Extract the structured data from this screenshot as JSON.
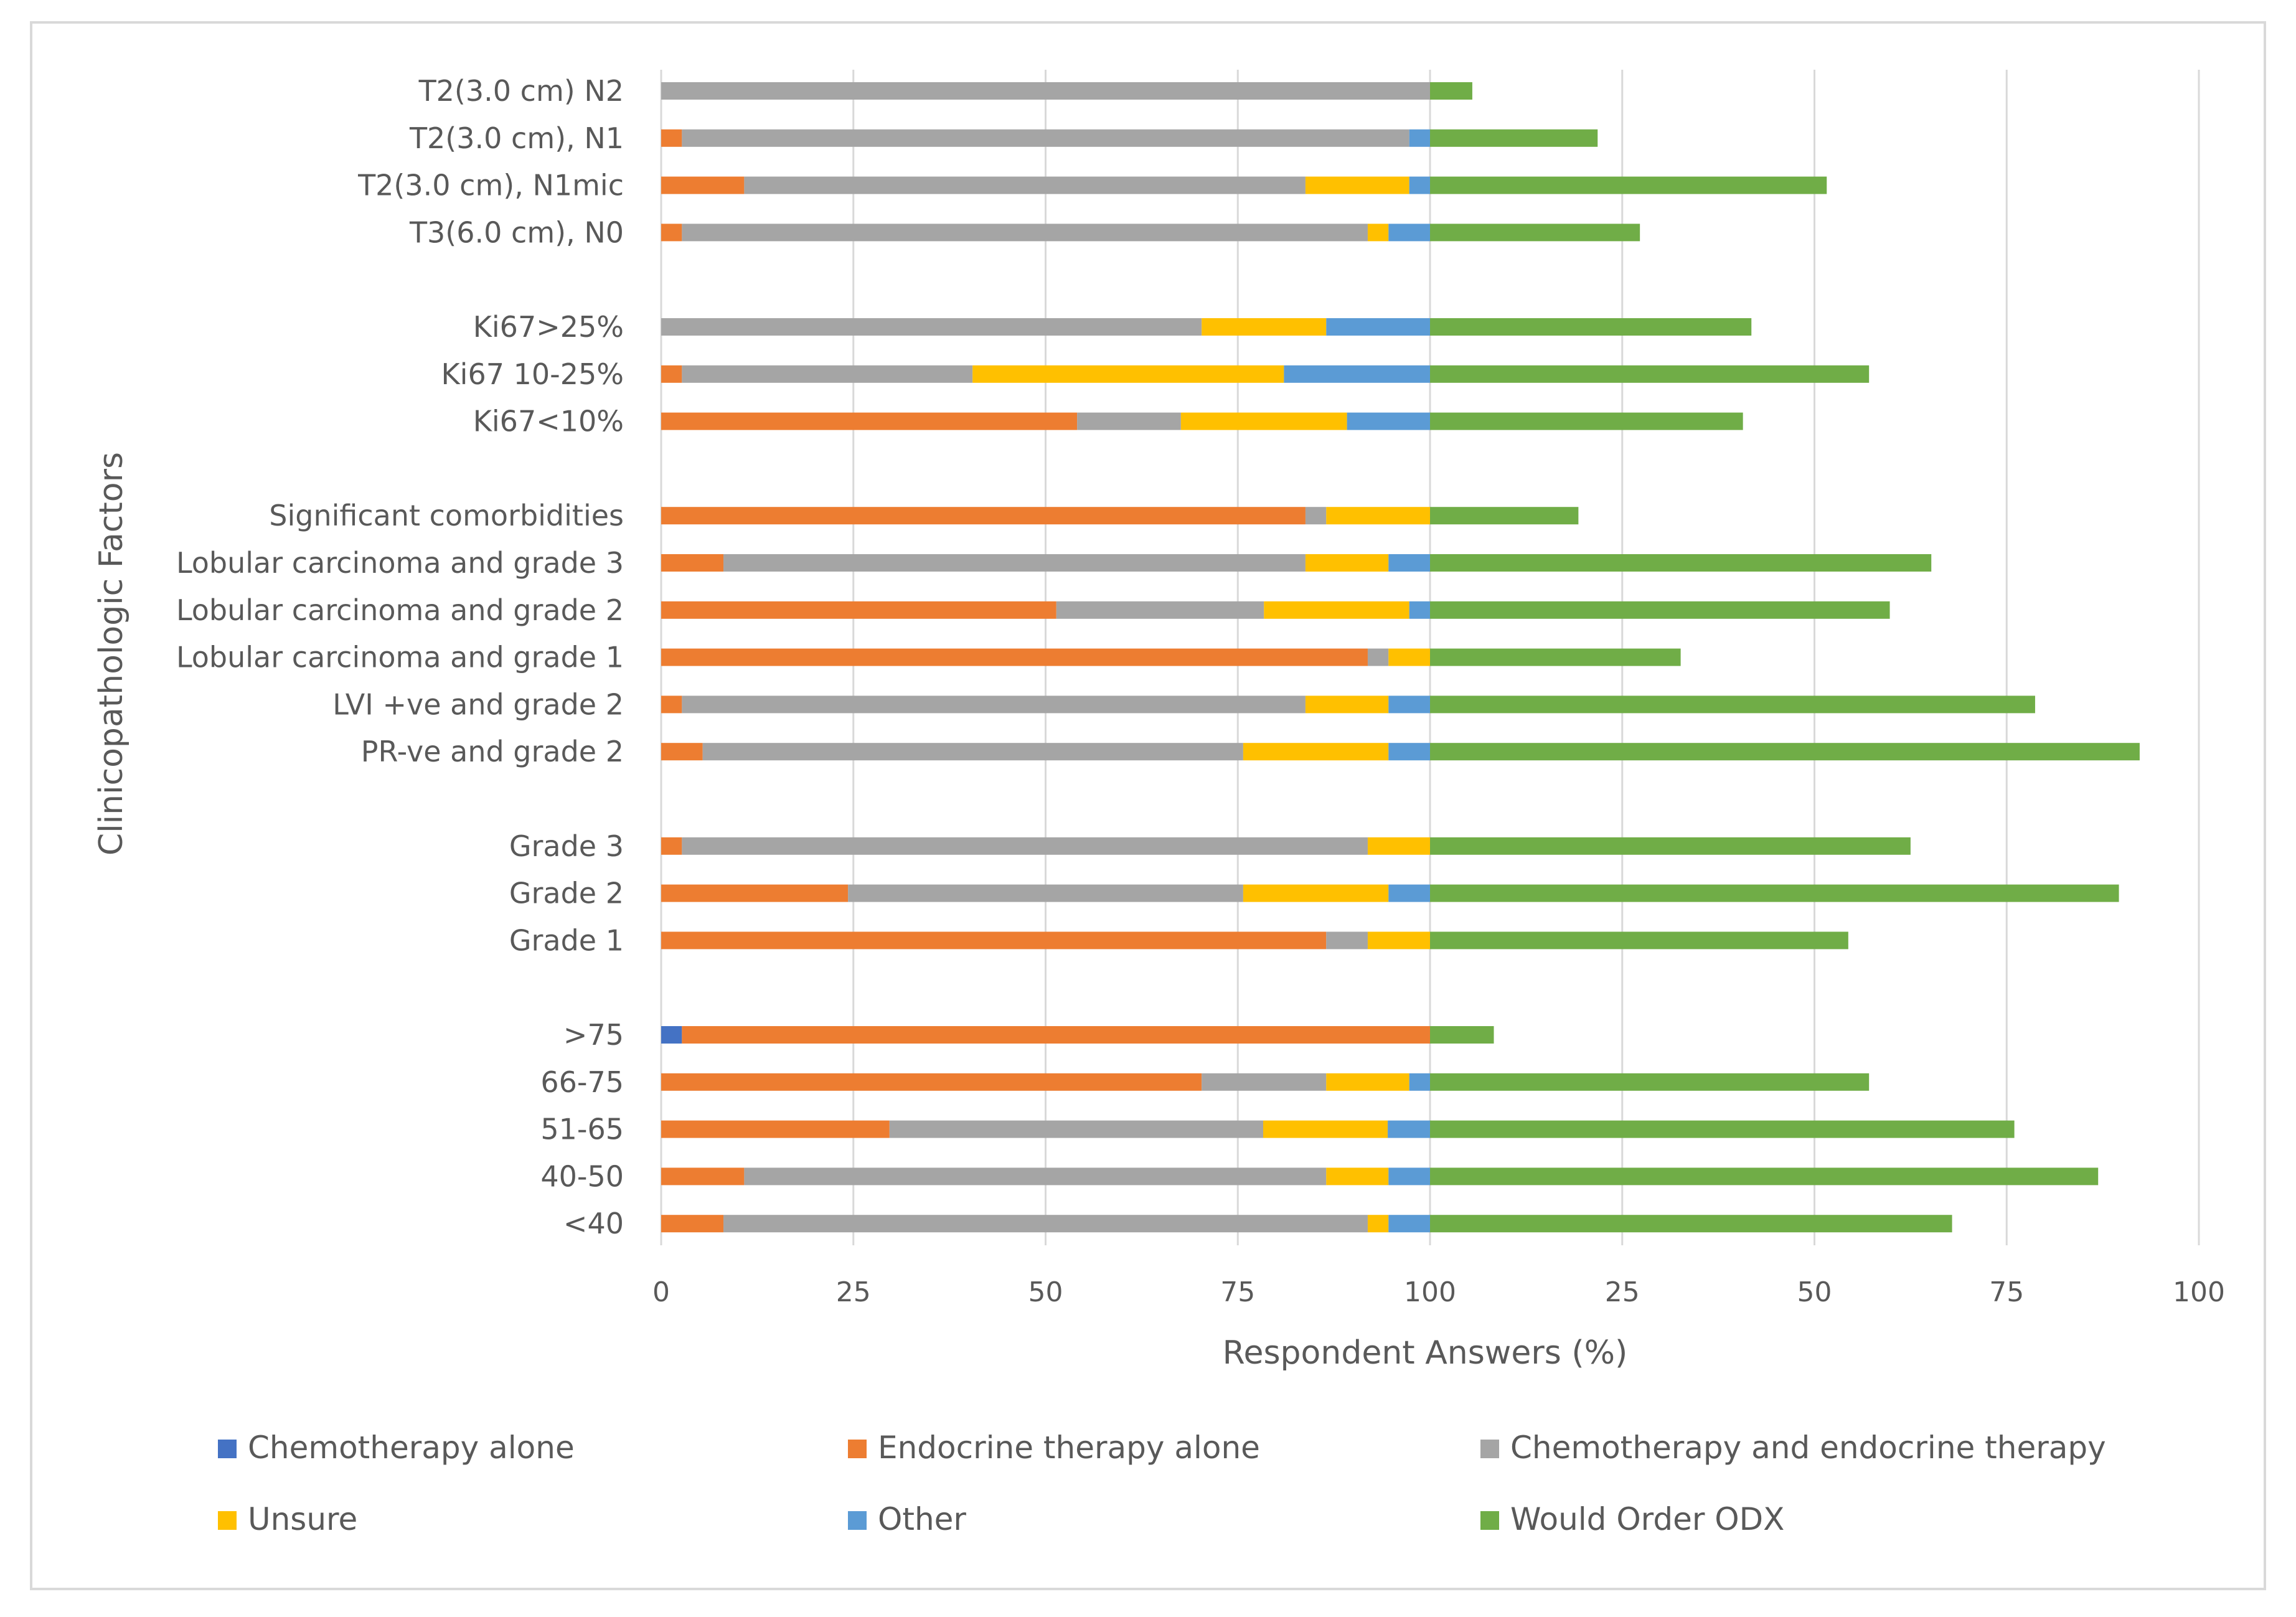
{
  "chart_data": {
    "type": "bar",
    "orientation": "horizontal",
    "stacked": true,
    "xlabel": "Respondent Answers (%)",
    "ylabel": "Clinicopathologic Factors",
    "xlim": [
      0,
      200
    ],
    "x_tick_labels": [
      "0",
      "25",
      "50",
      "75",
      "100",
      "25",
      "50",
      "75",
      "100"
    ],
    "grid": true,
    "legend_position": "bottom",
    "series_colors": {
      "chemo_alone": "#4472C4",
      "endocrine_alone": "#ED7D31",
      "chemo_endocrine": "#A5A5A5",
      "unsure": "#FFC000",
      "other": "#5B9BD5",
      "would_order_odx": "#70AD47"
    },
    "legend": [
      {
        "key": "chemo_alone",
        "label": "Chemotherapy alone"
      },
      {
        "key": "endocrine_alone",
        "label": "Endocrine therapy alone"
      },
      {
        "key": "chemo_endocrine",
        "label": "Chemotherapy and endocrine therapy"
      },
      {
        "key": "unsure",
        "label": "Unsure"
      },
      {
        "key": "other",
        "label": "Other"
      },
      {
        "key": "would_order_odx",
        "label": "Would Order ODX"
      }
    ],
    "categories": [
      {
        "label": "T2(3.0 cm) N2",
        "slot": 0,
        "values": {
          "chemo_alone": 0,
          "endocrine_alone": 0,
          "chemo_endocrine": 100,
          "unsure": 0,
          "other": 0,
          "would_order_odx": 5.5
        }
      },
      {
        "label": "T2(3.0 cm), N1",
        "slot": 1,
        "values": {
          "chemo_alone": 0,
          "endocrine_alone": 2.7,
          "chemo_endocrine": 94.6,
          "unsure": 0,
          "other": 2.7,
          "would_order_odx": 21.8
        }
      },
      {
        "label": "T2(3.0 cm), N1mic",
        "slot": 2,
        "values": {
          "chemo_alone": 0,
          "endocrine_alone": 10.8,
          "chemo_endocrine": 73,
          "unsure": 13.5,
          "other": 2.7,
          "would_order_odx": 51.6
        }
      },
      {
        "label": "T3(6.0 cm), N0",
        "slot": 3,
        "values": {
          "chemo_alone": 0,
          "endocrine_alone": 2.7,
          "chemo_endocrine": 89.2,
          "unsure": 2.7,
          "other": 5.4,
          "would_order_odx": 27.3
        }
      },
      {
        "label": "Ki67>25%",
        "slot": 5,
        "values": {
          "chemo_alone": 0,
          "endocrine_alone": 0,
          "chemo_endocrine": 70.3,
          "unsure": 16.2,
          "other": 13.5,
          "would_order_odx": 41.8
        }
      },
      {
        "label": "Ki67 10-25%",
        "slot": 6,
        "values": {
          "chemo_alone": 0,
          "endocrine_alone": 2.7,
          "chemo_endocrine": 37.8,
          "unsure": 40.5,
          "other": 19,
          "would_order_odx": 57.1
        }
      },
      {
        "label": "Ki67<10%",
        "slot": 7,
        "values": {
          "chemo_alone": 0,
          "endocrine_alone": 54.1,
          "chemo_endocrine": 13.5,
          "unsure": 21.6,
          "other": 10.8,
          "would_order_odx": 40.7
        }
      },
      {
        "label": "Significant comorbidities",
        "slot": 9,
        "values": {
          "chemo_alone": 0,
          "endocrine_alone": 83.8,
          "chemo_endocrine": 2.7,
          "unsure": 13.5,
          "other": 0,
          "would_order_odx": 19.3
        }
      },
      {
        "label": "Lobular carcinoma and grade 3",
        "slot": 10,
        "values": {
          "chemo_alone": 0,
          "endocrine_alone": 8.1,
          "chemo_endocrine": 75.7,
          "unsure": 10.8,
          "other": 5.4,
          "would_order_odx": 65.2
        }
      },
      {
        "label": "Lobular carcinoma and grade 2",
        "slot": 11,
        "values": {
          "chemo_alone": 0,
          "endocrine_alone": 51.4,
          "chemo_endocrine": 27,
          "unsure": 18.9,
          "other": 2.7,
          "would_order_odx": 59.8
        }
      },
      {
        "label": "Lobular carcinoma and grade 1",
        "slot": 12,
        "values": {
          "chemo_alone": 0,
          "endocrine_alone": 91.9,
          "chemo_endocrine": 2.7,
          "unsure": 5.4,
          "other": 0,
          "would_order_odx": 32.6
        }
      },
      {
        "label": "LVI +ve and grade 2",
        "slot": 13,
        "values": {
          "chemo_alone": 0,
          "endocrine_alone": 2.7,
          "chemo_endocrine": 81.1,
          "unsure": 10.8,
          "other": 5.4,
          "would_order_odx": 78.7
        }
      },
      {
        "label": "PR-ve and grade 2",
        "slot": 14,
        "values": {
          "chemo_alone": 0,
          "endocrine_alone": 5.4,
          "chemo_endocrine": 70.3,
          "unsure": 18.9,
          "other": 5.4,
          "would_order_odx": 92.3
        }
      },
      {
        "label": "Grade 3",
        "slot": 16,
        "values": {
          "chemo_alone": 0,
          "endocrine_alone": 2.7,
          "chemo_endocrine": 89.2,
          "unsure": 8.1,
          "other": 0,
          "would_order_odx": 62.5
        }
      },
      {
        "label": "Grade 2",
        "slot": 17,
        "values": {
          "chemo_alone": 0,
          "endocrine_alone": 24.3,
          "chemo_endocrine": 51.4,
          "unsure": 18.9,
          "other": 5.4,
          "would_order_odx": 89.6
        }
      },
      {
        "label": "Grade 1",
        "slot": 18,
        "values": {
          "chemo_alone": 0,
          "endocrine_alone": 86.5,
          "chemo_endocrine": 5.4,
          "unsure": 8.1,
          "other": 0,
          "would_order_odx": 54.4
        }
      },
      {
        "label": ">75",
        "slot": 20,
        "values": {
          "chemo_alone": 2.7,
          "endocrine_alone": 97.3,
          "chemo_endocrine": 0,
          "unsure": 0,
          "other": 0,
          "would_order_odx": 8.3
        }
      },
      {
        "label": "66-75",
        "slot": 21,
        "values": {
          "chemo_alone": 0,
          "endocrine_alone": 70.3,
          "chemo_endocrine": 16.2,
          "unsure": 10.8,
          "other": 2.7,
          "would_order_odx": 57.1
        }
      },
      {
        "label": "51-65",
        "slot": 22,
        "values": {
          "chemo_alone": 0,
          "endocrine_alone": 29.7,
          "chemo_endocrine": 48.6,
          "unsure": 16.2,
          "other": 5.5,
          "would_order_odx": 76
        }
      },
      {
        "label": "40-50",
        "slot": 23,
        "values": {
          "chemo_alone": 0,
          "endocrine_alone": 10.8,
          "chemo_endocrine": 75.7,
          "unsure": 8.1,
          "other": 5.4,
          "would_order_odx": 86.9
        }
      },
      {
        "label": "<40",
        "slot": 24,
        "values": {
          "chemo_alone": 0,
          "endocrine_alone": 8.1,
          "chemo_endocrine": 83.8,
          "unsure": 2.7,
          "other": 5.4,
          "would_order_odx": 67.9
        }
      }
    ]
  }
}
